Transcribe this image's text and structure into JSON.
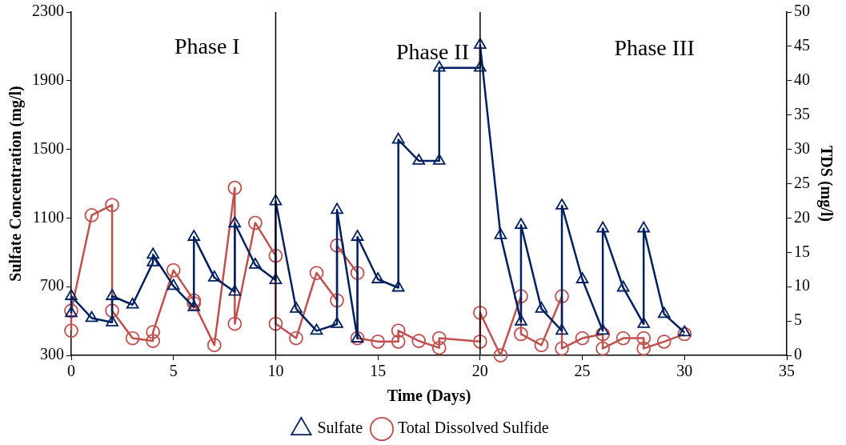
{
  "chart_data": {
    "type": "line",
    "xlabel": "Time (Days)",
    "ylabel": "Sulfate Concentration (mg/l)",
    "y2label": "TDS (mg/l)",
    "xlim": [
      0,
      35
    ],
    "xticks": [
      0,
      5,
      10,
      15,
      20,
      25,
      30,
      35
    ],
    "ylim": [
      300,
      2300
    ],
    "yticks": [
      300,
      700,
      1100,
      1500,
      1900,
      2300
    ],
    "y2lim": [
      0,
      50
    ],
    "y2ticks": [
      0,
      5,
      10,
      15,
      20,
      25,
      30,
      35,
      40,
      45,
      50
    ],
    "grid": false,
    "legend": "bottom",
    "line_style": "solid",
    "ref_lines": [
      {
        "axis": "x",
        "value": 10,
        "label": null,
        "color": "#000000"
      },
      {
        "axis": "x",
        "value": 20,
        "label": null,
        "color": "#000000"
      }
    ],
    "annotations": [
      "Phase I",
      "Phase II",
      "Phase III"
    ],
    "series": [
      {
        "name": "Sulfate",
        "color": "#002060",
        "marker": "triangle",
        "x": [
          0,
          0,
          1,
          2,
          2,
          3,
          4,
          4,
          5,
          6,
          6,
          7,
          8,
          8,
          9,
          10,
          10,
          11,
          12,
          13,
          13,
          14,
          14,
          15,
          16,
          16,
          17,
          18,
          18,
          20,
          20,
          21,
          22,
          22,
          23,
          24,
          24,
          25,
          26,
          26,
          27,
          28,
          28,
          29,
          30
        ],
        "values": [
          546,
          645,
          517,
          492,
          645,
          595,
          842,
          886,
          704,
          580,
          990,
          753,
          670,
          1068,
          827,
          738,
          1197,
          571,
          443,
          482,
          1147,
          398,
          990,
          743,
          694,
          1556,
          1433,
          1433,
          1975,
          1975,
          2108,
          1000,
          497,
          1059,
          571,
          443,
          1172,
          743,
          443,
          1039,
          694,
          482,
          1039,
          541,
          433
        ]
      },
      {
        "name": "Total Dissolved Sulfide",
        "color": "#c0504d",
        "marker": "circle",
        "axis": "y2",
        "x": [
          0,
          0,
          1,
          2,
          2,
          3,
          4,
          4,
          5,
          6,
          6,
          7,
          8,
          8,
          9,
          10,
          10,
          11,
          12,
          13,
          13,
          14,
          14,
          15,
          16,
          16,
          17,
          18,
          18,
          20,
          20,
          21,
          22,
          22,
          23,
          24,
          24,
          25,
          26,
          26,
          27,
          28,
          28,
          29,
          30
        ],
        "values": [
          3.6,
          6.5,
          20.4,
          21.9,
          6.5,
          2.5,
          2.1,
          3.4,
          12.4,
          8.0,
          7.6,
          1.5,
          24.4,
          4.6,
          19.3,
          14.5,
          4.6,
          2.5,
          12.0,
          8.0,
          16.0,
          12.0,
          2.5,
          2.0,
          2.0,
          3.6,
          2.1,
          1.1,
          2.5,
          2.0,
          6.2,
          0,
          8.6,
          3.1,
          1.5,
          8.6,
          1.0,
          2.5,
          3.1,
          1.0,
          2.5,
          2.5,
          1.0,
          2.0,
          3.1
        ]
      }
    ]
  }
}
